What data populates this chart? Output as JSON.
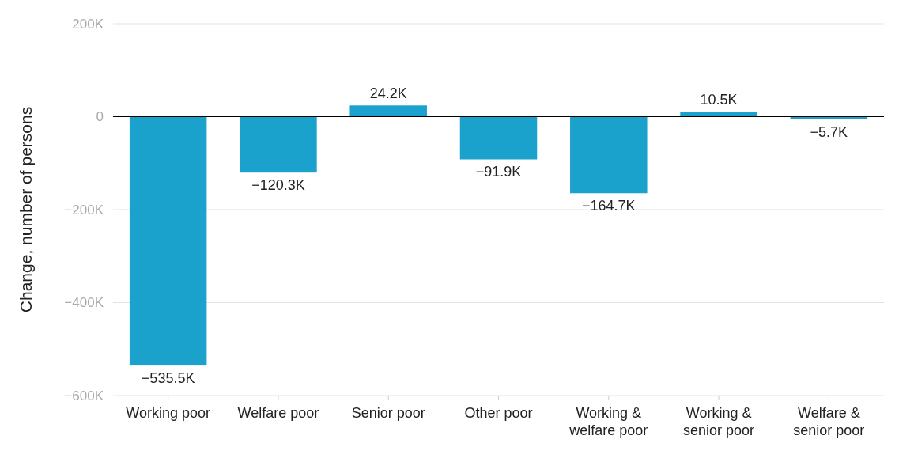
{
  "chart_data": {
    "type": "bar",
    "ylabel": "Change, number of persons",
    "categories": [
      "Working poor",
      "Welfare poor",
      "Senior poor",
      "Other poor",
      "Working & welfare poor",
      "Working & senior poor",
      "Welfare & senior poor"
    ],
    "values": [
      -535500,
      -120300,
      24200,
      -91900,
      -164700,
      10500,
      -5700
    ],
    "value_labels": [
      "−535.5K",
      "−120.3K",
      "24.2K",
      "−91.9K",
      "−164.7K",
      "10.5K",
      "−5.7K"
    ],
    "color": "#1aa1cc",
    "ylim": [
      -600000,
      200000
    ],
    "yticks": [
      {
        "value": -600000,
        "label": "−600K"
      },
      {
        "value": -400000,
        "label": "−400K"
      },
      {
        "value": -200000,
        "label": "−200K"
      },
      0,
      {
        "value": 200000,
        "label": "200K"
      }
    ],
    "grid": "y"
  }
}
